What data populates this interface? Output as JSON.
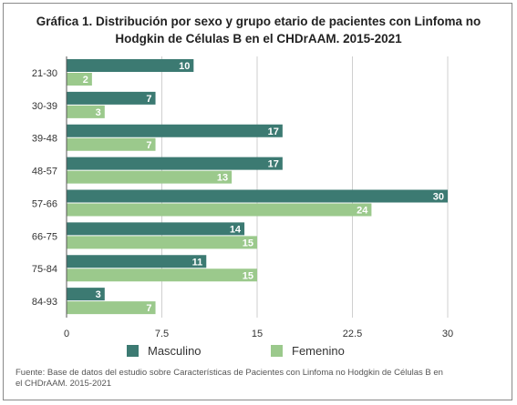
{
  "title_lines": [
    "Gráfica 1. Distribución por sexo y grupo etario de pacientes con Linfoma no",
    "Hodgkin de Células B en el CHDrAAM. 2015-2021"
  ],
  "source_lines": [
    "Fuente: Base de datos del estudio sobre Características de Pacientes con Linfoma no Hodgkin de Células B en",
    "el CHDrAAM. 2015-2021"
  ],
  "colors": {
    "masculino": "#3c7a72",
    "femenino": "#9bc98c",
    "grid": "#cfcfcf",
    "axis": "#555555"
  },
  "chart_data": {
    "type": "bar",
    "orientation": "horizontal",
    "categories": [
      "21-30",
      "30-39",
      "39-48",
      "48-57",
      "57-66",
      "66-75",
      "75-84",
      "84-93"
    ],
    "series": [
      {
        "name": "Masculino",
        "values": [
          10,
          7,
          17,
          17,
          30,
          14,
          11,
          3
        ]
      },
      {
        "name": "Femenino",
        "values": [
          2,
          3,
          7,
          13,
          24,
          15,
          15,
          7
        ]
      }
    ],
    "xlim": [
      0,
      30
    ],
    "xticks": [
      "0",
      "7.5",
      "15",
      "22.5",
      "30"
    ],
    "grid": true,
    "legend": "bottom"
  }
}
